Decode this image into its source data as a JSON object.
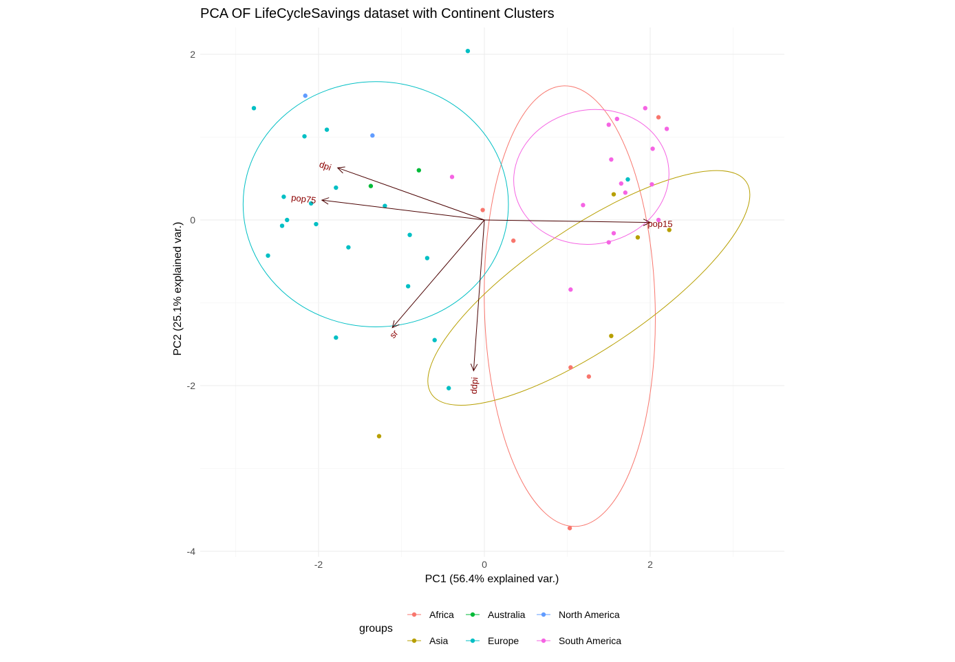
{
  "chart_data": {
    "type": "scatter",
    "title": "PCA OF LifeCycleSavings dataset with Continent Clusters",
    "xlabel": "PC1 (56.4% explained var.)",
    "ylabel": "PC2 (25.1% explained var.)",
    "xlim": [
      -3.0,
      3.6
    ],
    "ylim": [
      -4.0,
      2.3
    ],
    "x_ticks": [
      -2,
      0,
      2
    ],
    "y_ticks": [
      -4,
      -2,
      0,
      2
    ],
    "legend": {
      "title": "groups",
      "position": "bottom"
    },
    "groups": [
      {
        "name": "Africa",
        "color": "#F8766D",
        "points": [
          [
            -0.02,
            0.12
          ],
          [
            0.35,
            -0.25
          ],
          [
            2.1,
            1.24
          ],
          [
            1.04,
            -1.78
          ],
          [
            1.26,
            -1.89
          ],
          [
            1.03,
            -3.72
          ]
        ]
      },
      {
        "name": "Asia",
        "color": "#B79F00",
        "points": [
          [
            1.56,
            0.31
          ],
          [
            1.85,
            -0.21
          ],
          [
            2.23,
            -0.12
          ],
          [
            1.53,
            -1.4
          ],
          [
            -1.27,
            -2.61
          ]
        ]
      },
      {
        "name": "Australia",
        "color": "#00BA38",
        "points": [
          [
            -0.79,
            0.6
          ],
          [
            -1.37,
            0.41
          ]
        ]
      },
      {
        "name": "Europe",
        "color": "#00BFC4",
        "points": [
          [
            -2.78,
            1.35
          ],
          [
            -2.17,
            1.01
          ],
          [
            -1.9,
            1.09
          ],
          [
            -1.79,
            0.39
          ],
          [
            -2.42,
            0.28
          ],
          [
            -2.09,
            0.2
          ],
          [
            -1.2,
            0.17
          ],
          [
            -2.38,
            0.0
          ],
          [
            -2.44,
            -0.07
          ],
          [
            -2.03,
            -0.05
          ],
          [
            -1.64,
            -0.33
          ],
          [
            -0.9,
            -0.18
          ],
          [
            -0.69,
            -0.46
          ],
          [
            -2.61,
            -0.43
          ],
          [
            -0.92,
            -0.8
          ],
          [
            -1.79,
            -1.42
          ],
          [
            -0.6,
            -1.45
          ],
          [
            -0.43,
            -2.03
          ],
          [
            -0.2,
            2.04
          ],
          [
            1.73,
            0.49
          ]
        ]
      },
      {
        "name": "North America",
        "color": "#619CFF",
        "points": [
          [
            -2.16,
            1.5
          ],
          [
            -1.35,
            1.02
          ]
        ]
      },
      {
        "name": "South America",
        "color": "#F564E3",
        "points": [
          [
            1.94,
            1.35
          ],
          [
            1.6,
            1.22
          ],
          [
            1.5,
            1.15
          ],
          [
            2.2,
            1.1
          ],
          [
            2.03,
            0.86
          ],
          [
            1.53,
            0.73
          ],
          [
            -0.39,
            0.52
          ],
          [
            1.65,
            0.44
          ],
          [
            2.02,
            0.43
          ],
          [
            1.7,
            0.33
          ],
          [
            1.19,
            0.18
          ],
          [
            2.1,
            0.0
          ],
          [
            1.56,
            -0.16
          ],
          [
            1.5,
            -0.27
          ],
          [
            1.04,
            -0.84
          ]
        ]
      }
    ],
    "ellipses": [
      {
        "group": "Africa",
        "center": [
          1.03,
          -1.04
        ],
        "rx": 1.03,
        "ry": 2.66,
        "angle_deg": 1.5
      },
      {
        "group": "Asia",
        "center": [
          1.26,
          -0.82
        ],
        "rx": 2.29,
        "ry": 0.73,
        "angle_deg": 34
      },
      {
        "group": "Europe",
        "center": [
          -1.31,
          0.19
        ],
        "rx": 1.6,
        "ry": 1.48,
        "angle_deg": 0
      },
      {
        "group": "South America",
        "center": [
          1.29,
          0.52
        ],
        "rx": 0.94,
        "ry": 0.81,
        "angle_deg": 10
      }
    ],
    "loadings": [
      {
        "name": "pop15",
        "end": [
          2.0,
          -0.03
        ],
        "label_at": [
          2.12,
          -0.05
        ]
      },
      {
        "name": "dpi",
        "end": [
          -1.77,
          0.63
        ],
        "label_at": [
          -1.92,
          0.65
        ]
      },
      {
        "name": "pop75",
        "end": [
          -1.96,
          0.24
        ],
        "label_at": [
          -2.18,
          0.25
        ]
      },
      {
        "name": "sr",
        "end": [
          -1.11,
          -1.3
        ],
        "label_at": [
          -1.09,
          -1.38
        ]
      },
      {
        "name": "ddpi",
        "end": [
          -0.13,
          -1.82
        ],
        "label_at": [
          -0.12,
          -2.0
        ]
      }
    ],
    "arrow_color": "#8B0000"
  }
}
